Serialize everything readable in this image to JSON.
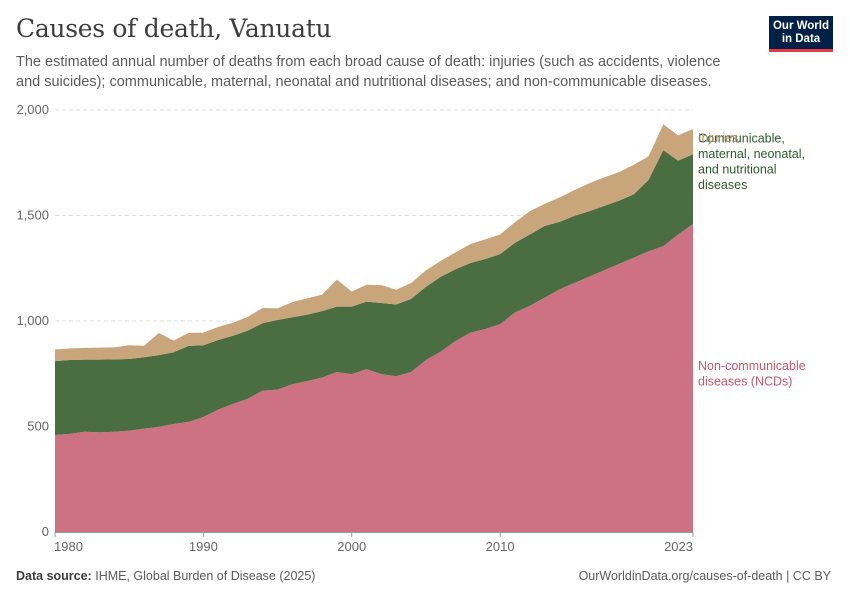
{
  "header": {
    "title": "Causes of death, Vanuatu",
    "subtitle": "The estimated annual number of deaths from each broad cause of death: injuries (such as accidents, violence and suicides); communicable, maternal, neonatal and nutritional diseases; and non-communicable diseases."
  },
  "logo": {
    "line1": "Our World",
    "line2": "in Data"
  },
  "footer": {
    "source_label": "Data source:",
    "source_text": "IHME, Global Burden of Disease (2025)",
    "url": "OurWorldinData.org/causes-of-death | CC BY"
  },
  "colors": {
    "ncd": "#cd7282",
    "communicable": "#4a6e41",
    "injuries": "#c9a57c",
    "ncd_label": "#c55a6d",
    "communicable_label": "#2d5a2a",
    "injuries_label": "#a98a62",
    "logo_bg": "#002147",
    "logo_accent": "#e63946"
  },
  "chart_data": {
    "type": "area",
    "stacked": true,
    "grid": true,
    "ylim": [
      0,
      2000
    ],
    "y_ticks": [
      0,
      500,
      1000,
      1500,
      2000
    ],
    "y_tick_labels": [
      "0",
      "500",
      "1,000",
      "1,500",
      "2,000"
    ],
    "xlim": [
      1980,
      2023
    ],
    "x_ticks": [
      1980,
      1990,
      2000,
      2010,
      2023
    ],
    "x_tick_labels": [
      "1980",
      "1990",
      "2000",
      "2010",
      "2023"
    ],
    "x": [
      1980,
      1981,
      1982,
      1983,
      1984,
      1985,
      1986,
      1987,
      1988,
      1989,
      1990,
      1991,
      1992,
      1993,
      1994,
      1995,
      1996,
      1997,
      1998,
      1999,
      2000,
      2001,
      2002,
      2003,
      2004,
      2005,
      2006,
      2007,
      2008,
      2009,
      2010,
      2011,
      2012,
      2013,
      2014,
      2015,
      2016,
      2017,
      2018,
      2019,
      2020,
      2021,
      2022,
      2023
    ],
    "series": [
      {
        "name": "Non-communicable diseases (NCDs)",
        "label_lines": [
          "Non-communicable",
          "diseases (NCDs)"
        ],
        "values": [
          460,
          465,
          475,
          472,
          475,
          480,
          490,
          498,
          512,
          522,
          545,
          580,
          607,
          632,
          670,
          675,
          700,
          715,
          732,
          758,
          748,
          772,
          748,
          738,
          758,
          815,
          855,
          905,
          945,
          962,
          985,
          1040,
          1072,
          1110,
          1150,
          1180,
          1210,
          1240,
          1270,
          1300,
          1330,
          1355,
          1410,
          1460
        ]
      },
      {
        "name": "Communicable, maternal, neonatal, and nutritional diseases",
        "label_lines": [
          "Communicable,",
          "maternal, neonatal,",
          "and nutritional",
          "diseases"
        ],
        "values": [
          350,
          350,
          342,
          345,
          343,
          340,
          338,
          340,
          340,
          360,
          340,
          330,
          323,
          323,
          320,
          330,
          318,
          315,
          315,
          310,
          320,
          320,
          337,
          340,
          347,
          347,
          355,
          340,
          330,
          332,
          332,
          330,
          338,
          340,
          320,
          318,
          310,
          305,
          300,
          300,
          338,
          455,
          350,
          330
        ]
      },
      {
        "name": "Injuries",
        "label_lines": [
          "Injuries"
        ],
        "values": [
          55,
          55,
          55,
          57,
          57,
          65,
          55,
          105,
          55,
          62,
          60,
          62,
          62,
          65,
          72,
          55,
          72,
          77,
          78,
          128,
          72,
          80,
          85,
          70,
          75,
          78,
          75,
          80,
          90,
          93,
          93,
          98,
          110,
          105,
          115,
          122,
          132,
          135,
          135,
          140,
          112,
          122,
          120,
          120
        ]
      }
    ]
  }
}
